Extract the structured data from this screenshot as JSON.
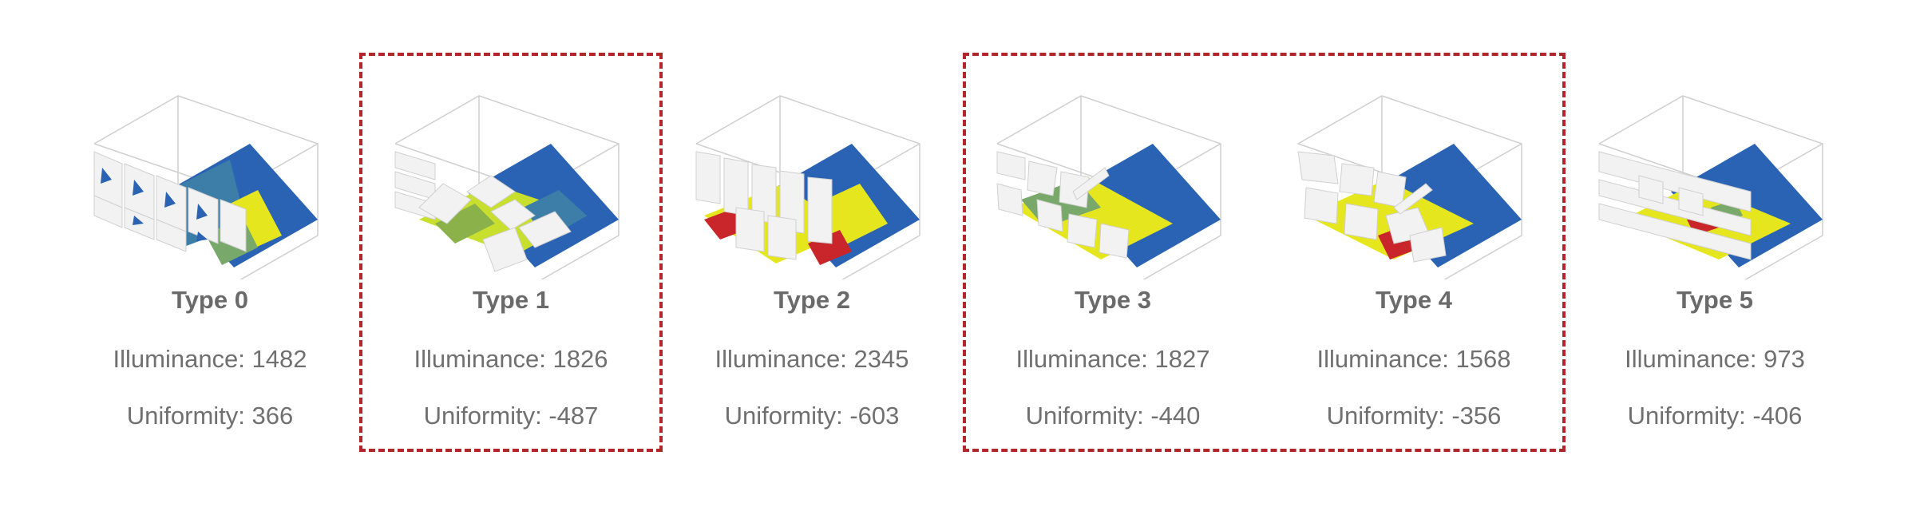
{
  "colors": {
    "highlight_border": "#b0262b",
    "floor_blue": "#2b63b4",
    "floor_yellow": "#e6e61e",
    "floor_green": "#78a86a",
    "floor_red": "#c8262a",
    "shade_white": "#f2f2f2",
    "outline_gray": "#cfcfcf"
  },
  "highlight_groups": [
    {
      "types": [
        "Type 1"
      ]
    },
    {
      "types": [
        "Type 3",
        "Type 4"
      ]
    }
  ],
  "types": [
    {
      "title": "Type 0",
      "illuminance": "Illuminance: 1482",
      "uniformity": "Uniformity: 366"
    },
    {
      "title": "Type 1",
      "illuminance": "Illuminance: 1826",
      "uniformity": "Uniformity: -487"
    },
    {
      "title": "Type 2",
      "illuminance": "Illuminance: 2345",
      "uniformity": "Uniformity: -603"
    },
    {
      "title": "Type 3",
      "illuminance": "Illuminance: 1827",
      "uniformity": "Uniformity: -440"
    },
    {
      "title": "Type 4",
      "illuminance": "Illuminance: 1568",
      "uniformity": "Uniformity: -356"
    },
    {
      "title": "Type 5",
      "illuminance": "Illuminance: 973",
      "uniformity": "Uniformity: -406"
    }
  ]
}
